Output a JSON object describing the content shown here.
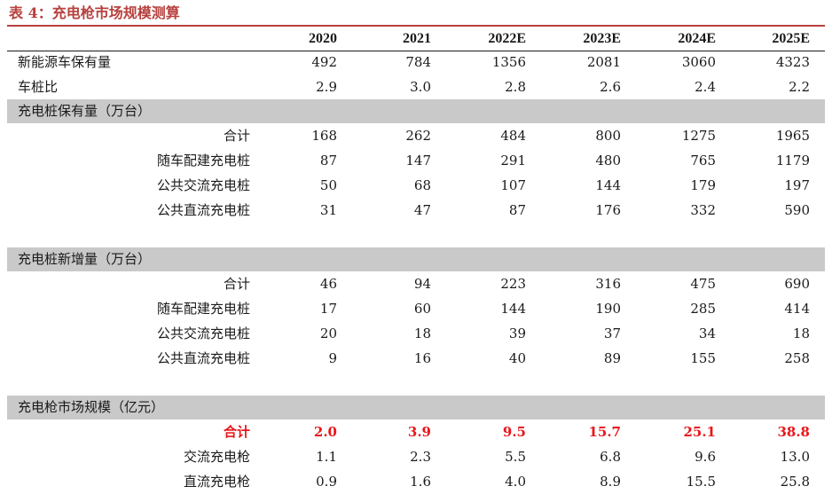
{
  "title": "表 4：充电枪市场规模测算",
  "header": [
    "2020",
    "2021",
    "2022E",
    "2023E",
    "2024E",
    "2025E"
  ],
  "top_rows": [
    {
      "label": "新能源车保有量",
      "values": [
        "492",
        "784",
        "1356",
        "2081",
        "3060",
        "4323"
      ]
    },
    {
      "label": "车桩比",
      "values": [
        "2.9",
        "3.0",
        "2.8",
        "2.6",
        "2.4",
        "2.2"
      ]
    }
  ],
  "sections": [
    {
      "title": "充电桩保有量（万台）",
      "rows": [
        {
          "label": "合计",
          "values": [
            "168",
            "262",
            "484",
            "800",
            "1275",
            "1965"
          ]
        },
        {
          "label": "随车配建充电桩",
          "values": [
            "87",
            "147",
            "291",
            "480",
            "765",
            "1179"
          ]
        },
        {
          "label": "公共交流充电桩",
          "values": [
            "50",
            "68",
            "107",
            "144",
            "179",
            "197"
          ]
        },
        {
          "label": "公共直流充电桩",
          "values": [
            "31",
            "47",
            "87",
            "176",
            "332",
            "590"
          ]
        }
      ]
    },
    {
      "title": "充电桩新增量（万台）",
      "rows": [
        {
          "label": "合计",
          "values": [
            "46",
            "94",
            "223",
            "316",
            "475",
            "690"
          ]
        },
        {
          "label": "随车配建充电桩",
          "values": [
            "17",
            "60",
            "144",
            "190",
            "285",
            "414"
          ]
        },
        {
          "label": "公共交流充电桩",
          "values": [
            "20",
            "18",
            "39",
            "37",
            "34",
            "18"
          ]
        },
        {
          "label": "公共直流充电桩",
          "values": [
            "9",
            "16",
            "40",
            "89",
            "155",
            "258"
          ]
        }
      ]
    },
    {
      "title": "充电枪市场规模（亿元）",
      "rows": [
        {
          "label": "合计",
          "values": [
            "2.0",
            "3.9",
            "9.5",
            "15.7",
            "25.1",
            "38.8"
          ],
          "highlight": true
        },
        {
          "label": "交流充电枪",
          "values": [
            "1.1",
            "2.3",
            "5.5",
            "6.8",
            "9.6",
            "13.0"
          ]
        },
        {
          "label": "直流充电枪",
          "values": [
            "0.9",
            "1.6",
            "4.0",
            "8.9",
            "15.5",
            "25.8"
          ]
        }
      ]
    }
  ],
  "colors": {
    "title": "#b7413e",
    "highlight": "#e8161a",
    "section_bg": "#c9c9c9"
  }
}
